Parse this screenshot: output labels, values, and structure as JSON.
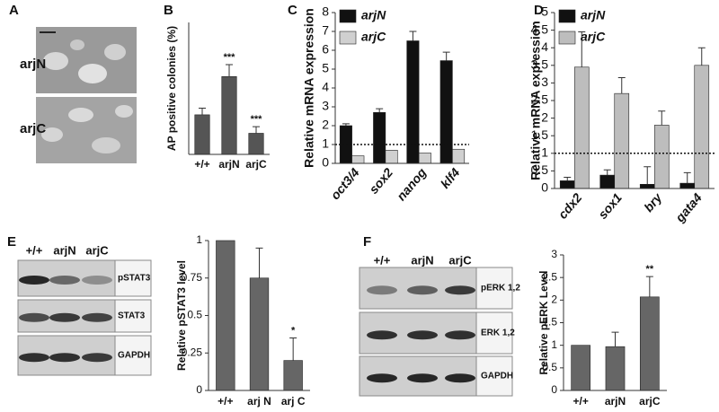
{
  "panel_labels": [
    "A",
    "B",
    "C",
    "D",
    "E",
    "F"
  ],
  "micrographs": {
    "labels": [
      "arjN",
      "arjC"
    ]
  },
  "blots": [
    {
      "lanes": [
        "+/+",
        "arjN",
        "arjC"
      ],
      "bands": [
        "pSTAT3",
        "STAT3",
        "GAPDH"
      ]
    },
    {
      "lanes": [
        "+/+",
        "arjN",
        "arjC"
      ],
      "bands": [
        "pERK 1,2",
        "ERK 1,2",
        "GAPDH"
      ]
    }
  ],
  "chart_data": [
    {
      "type": "bar",
      "y_label": "AP positive colonies (%)",
      "categories": [
        "+/+",
        "arjN",
        "arjC"
      ],
      "series": [
        {
          "color": "#555555",
          "values": [
            30,
            59,
            16
          ],
          "errors": [
            5,
            9,
            5
          ]
        }
      ],
      "ylim": [
        0,
        100
      ],
      "annotations": [
        {
          "category": "arjN",
          "text": "***"
        },
        {
          "category": "arjC",
          "text": "***"
        }
      ]
    },
    {
      "type": "bar",
      "y_label": "Relative mRNA expression",
      "categories": [
        "oct3/4",
        "sox2",
        "nanog",
        "klf4"
      ],
      "series": [
        {
          "name": "arjN",
          "color": "#111111",
          "values": [
            2.0,
            2.7,
            6.5,
            5.45
          ],
          "errors": [
            0.1,
            0.2,
            0.5,
            0.45
          ]
        },
        {
          "name": "arjC",
          "color": "#d0d0d0",
          "values": [
            0.4,
            0.7,
            0.55,
            0.75
          ],
          "errors": [
            null,
            null,
            null,
            null
          ]
        }
      ],
      "ylim": [
        0,
        8
      ],
      "yticks": [
        0,
        1,
        2,
        3,
        4,
        5,
        6,
        7,
        8
      ],
      "reference_line": 1,
      "legend": "top-left"
    },
    {
      "type": "bar",
      "y_label": "Relative mRNA expression",
      "categories": [
        "cdx2",
        "sox1",
        "bry",
        "gata4"
      ],
      "series": [
        {
          "name": "arjN",
          "color": "#111111",
          "values": [
            0.22,
            0.38,
            0.12,
            0.15
          ],
          "errors": [
            0.1,
            0.15,
            0.5,
            0.3
          ]
        },
        {
          "name": "arjC",
          "color": "#bdbdbd",
          "values": [
            3.45,
            2.7,
            1.8,
            3.5
          ],
          "errors": [
            1.0,
            0.45,
            0.4,
            0.5
          ]
        }
      ],
      "ylim": [
        0,
        5
      ],
      "yticks": [
        0,
        0.5,
        1,
        1.5,
        2,
        2.5,
        3,
        3.5,
        4,
        4.5,
        5
      ],
      "reference_line": 1,
      "legend": "top-left"
    },
    {
      "type": "bar",
      "y_label": "Relative pSTAT3 level",
      "categories": [
        "+/+",
        "arj N",
        "arj C"
      ],
      "series": [
        {
          "color": "#666666",
          "values": [
            1,
            0.75,
            0.2
          ],
          "errors": [
            null,
            0.2,
            0.15
          ]
        }
      ],
      "ylim": [
        0,
        1
      ],
      "yticks": [
        0,
        0.25,
        0.5,
        0.75,
        1
      ],
      "annotations": [
        {
          "category": "arj C",
          "text": "*"
        }
      ]
    },
    {
      "type": "bar",
      "y_label": "Relative pERK Level",
      "categories": [
        "+/+",
        "arjN",
        "arjC"
      ],
      "series": [
        {
          "color": "#666666",
          "values": [
            1,
            0.97,
            2.07
          ],
          "errors": [
            null,
            0.32,
            0.45
          ]
        }
      ],
      "ylim": [
        0,
        3
      ],
      "yticks": [
        0,
        0.5,
        1,
        1.5,
        2,
        2.5,
        3
      ],
      "annotations": [
        {
          "category": "arjC",
          "text": "**"
        }
      ]
    }
  ]
}
